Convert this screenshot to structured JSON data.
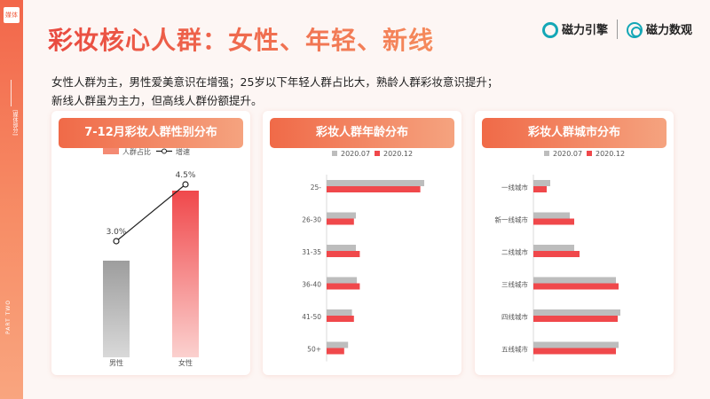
{
  "sidebar": {
    "tag": "媒体",
    "vtext": "[媒体部分]",
    "part": "PART TWO"
  },
  "title": "彩妆核心人群：女性、年轻、新线",
  "logos": {
    "left": "磁力引擎",
    "right": "磁力数观"
  },
  "desc": {
    "line1": "女性人群为主，男性爱美意识在增强；25岁以下年轻人群占比大，熟龄人群彩妆意识提升；",
    "line2": "新线人群虽为主力，但高线人群份额提升。"
  },
  "colors": {
    "gray": "#bdbdbd",
    "red": "#f0484b",
    "orange": "#f48a73",
    "pink_light": "#fbd1cf"
  },
  "chart_data": [
    {
      "type": "bar",
      "title": "7-12月彩妆人群性别分布",
      "categories": [
        "男性",
        "女性"
      ],
      "series": [
        {
          "name": "人群占比"
        }
      ],
      "line_series": {
        "name": "增速",
        "values": [
          3.0,
          4.5
        ],
        "labels": [
          "3.0%",
          "4.5%"
        ]
      },
      "bar_values": [
        0.58,
        1.0
      ],
      "bar_values_note": "relative heights, no axis shown"
    },
    {
      "type": "bar",
      "orientation": "horizontal",
      "title": "彩妆人群年龄分布",
      "categories": [
        "25-",
        "26-30",
        "31-35",
        "36-40",
        "41-50",
        "50+"
      ],
      "series": [
        {
          "name": "2020.07",
          "values": [
            1.0,
            0.3,
            0.3,
            0.31,
            0.26,
            0.22
          ]
        },
        {
          "name": "2020.12",
          "values": [
            0.96,
            0.28,
            0.34,
            0.34,
            0.28,
            0.18
          ]
        }
      ]
    },
    {
      "type": "bar",
      "orientation": "horizontal",
      "title": "彩妆人群城市分布",
      "categories": [
        "一线城市",
        "新一线城市",
        "二线城市",
        "三线城市",
        "四线城市",
        "五线城市"
      ],
      "series": [
        {
          "name": "2020.07",
          "values": [
            0.19,
            0.41,
            0.46,
            0.93,
            0.98,
            0.96
          ]
        },
        {
          "name": "2020.12",
          "values": [
            0.15,
            0.46,
            0.52,
            0.96,
            0.95,
            0.93
          ]
        }
      ]
    }
  ]
}
